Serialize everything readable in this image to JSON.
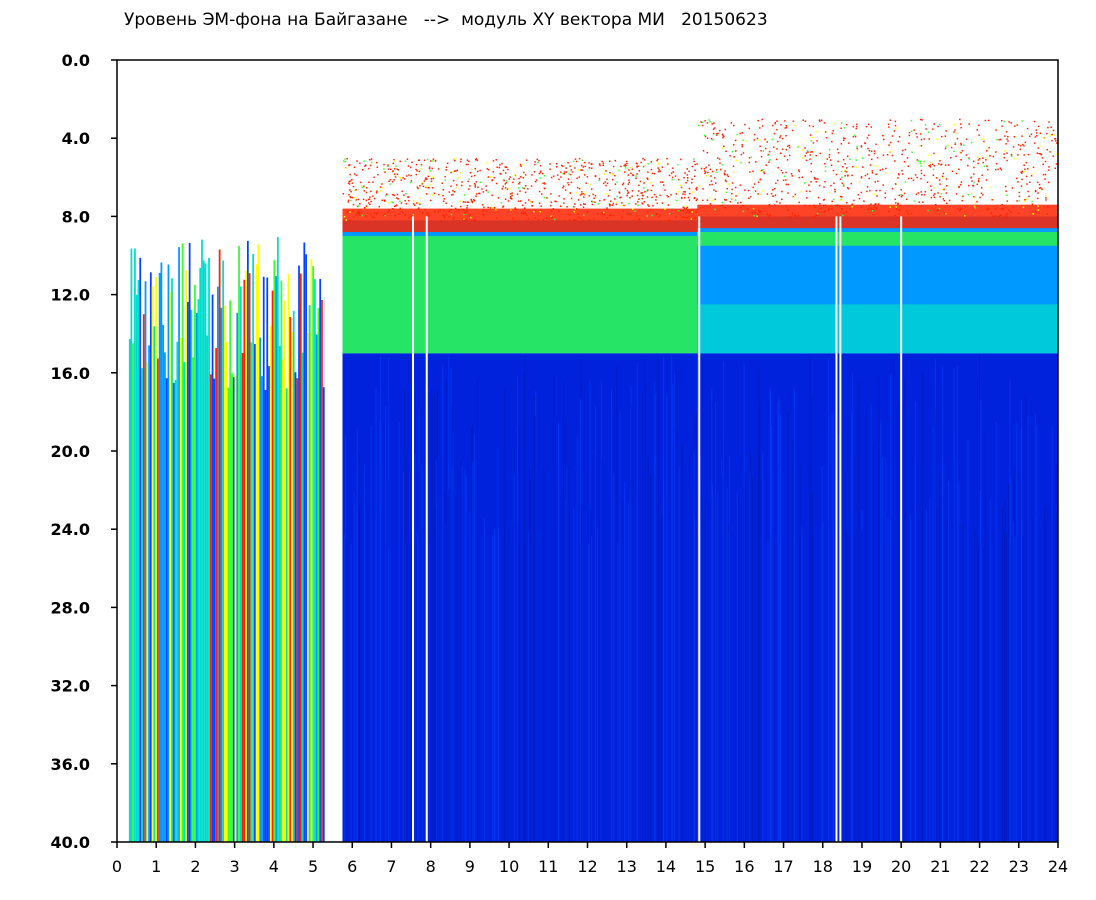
{
  "chart_data": {
    "type": "heatmap",
    "title": "Уровень ЭМ-фона на Байгазане   -->  модуль XY вектора МИ   20150623",
    "xlabel": "",
    "ylabel": "",
    "xlim": [
      0,
      24
    ],
    "ylim": [
      0,
      40
    ],
    "y_inverted": true,
    "x_ticks": [
      "0",
      "1",
      "2",
      "3",
      "4",
      "5",
      "6",
      "7",
      "8",
      "9",
      "10",
      "11",
      "12",
      "13",
      "14",
      "15",
      "16",
      "17",
      "18",
      "19",
      "20",
      "21",
      "22",
      "23",
      "24"
    ],
    "y_ticks": [
      "0.0",
      "4.0",
      "8.0",
      "12.0",
      "16.0",
      "20.0",
      "24.0",
      "28.0",
      "32.0",
      "36.0",
      "40.0"
    ],
    "colorscale": [
      "#0022dd",
      "#0044ff",
      "#0099ff",
      "#00ddcc",
      "#33ff33",
      "#ffff00",
      "#ff2200"
    ],
    "background": "#ffffff",
    "gaps_hours": [
      [
        0.0,
        0.3
      ],
      [
        5.3,
        5.75
      ]
    ],
    "white_lines_hours": [
      7.55,
      7.9,
      14.85,
      18.35,
      18.45,
      20.0
    ],
    "bands": [
      {
        "from_hour": 0.3,
        "to_hour": 5.3,
        "description_level": "striped",
        "top_y": 9.0,
        "bottom_y": 40.0
      },
      {
        "from_hour": 5.75,
        "to_hour": 14.8,
        "noise_top_y": 5.0,
        "red_edge_y": 8.2,
        "green_to_y": 15.0,
        "blue_from_y": 15.0
      },
      {
        "from_hour": 14.8,
        "to_hour": 24.0,
        "noise_top_y": 3.0,
        "red_edge_y": 8.0,
        "green_to_y": 9.5,
        "cyan_band_y": [
          12.5,
          15.0
        ],
        "blue_from_y": 15.0
      }
    ]
  }
}
